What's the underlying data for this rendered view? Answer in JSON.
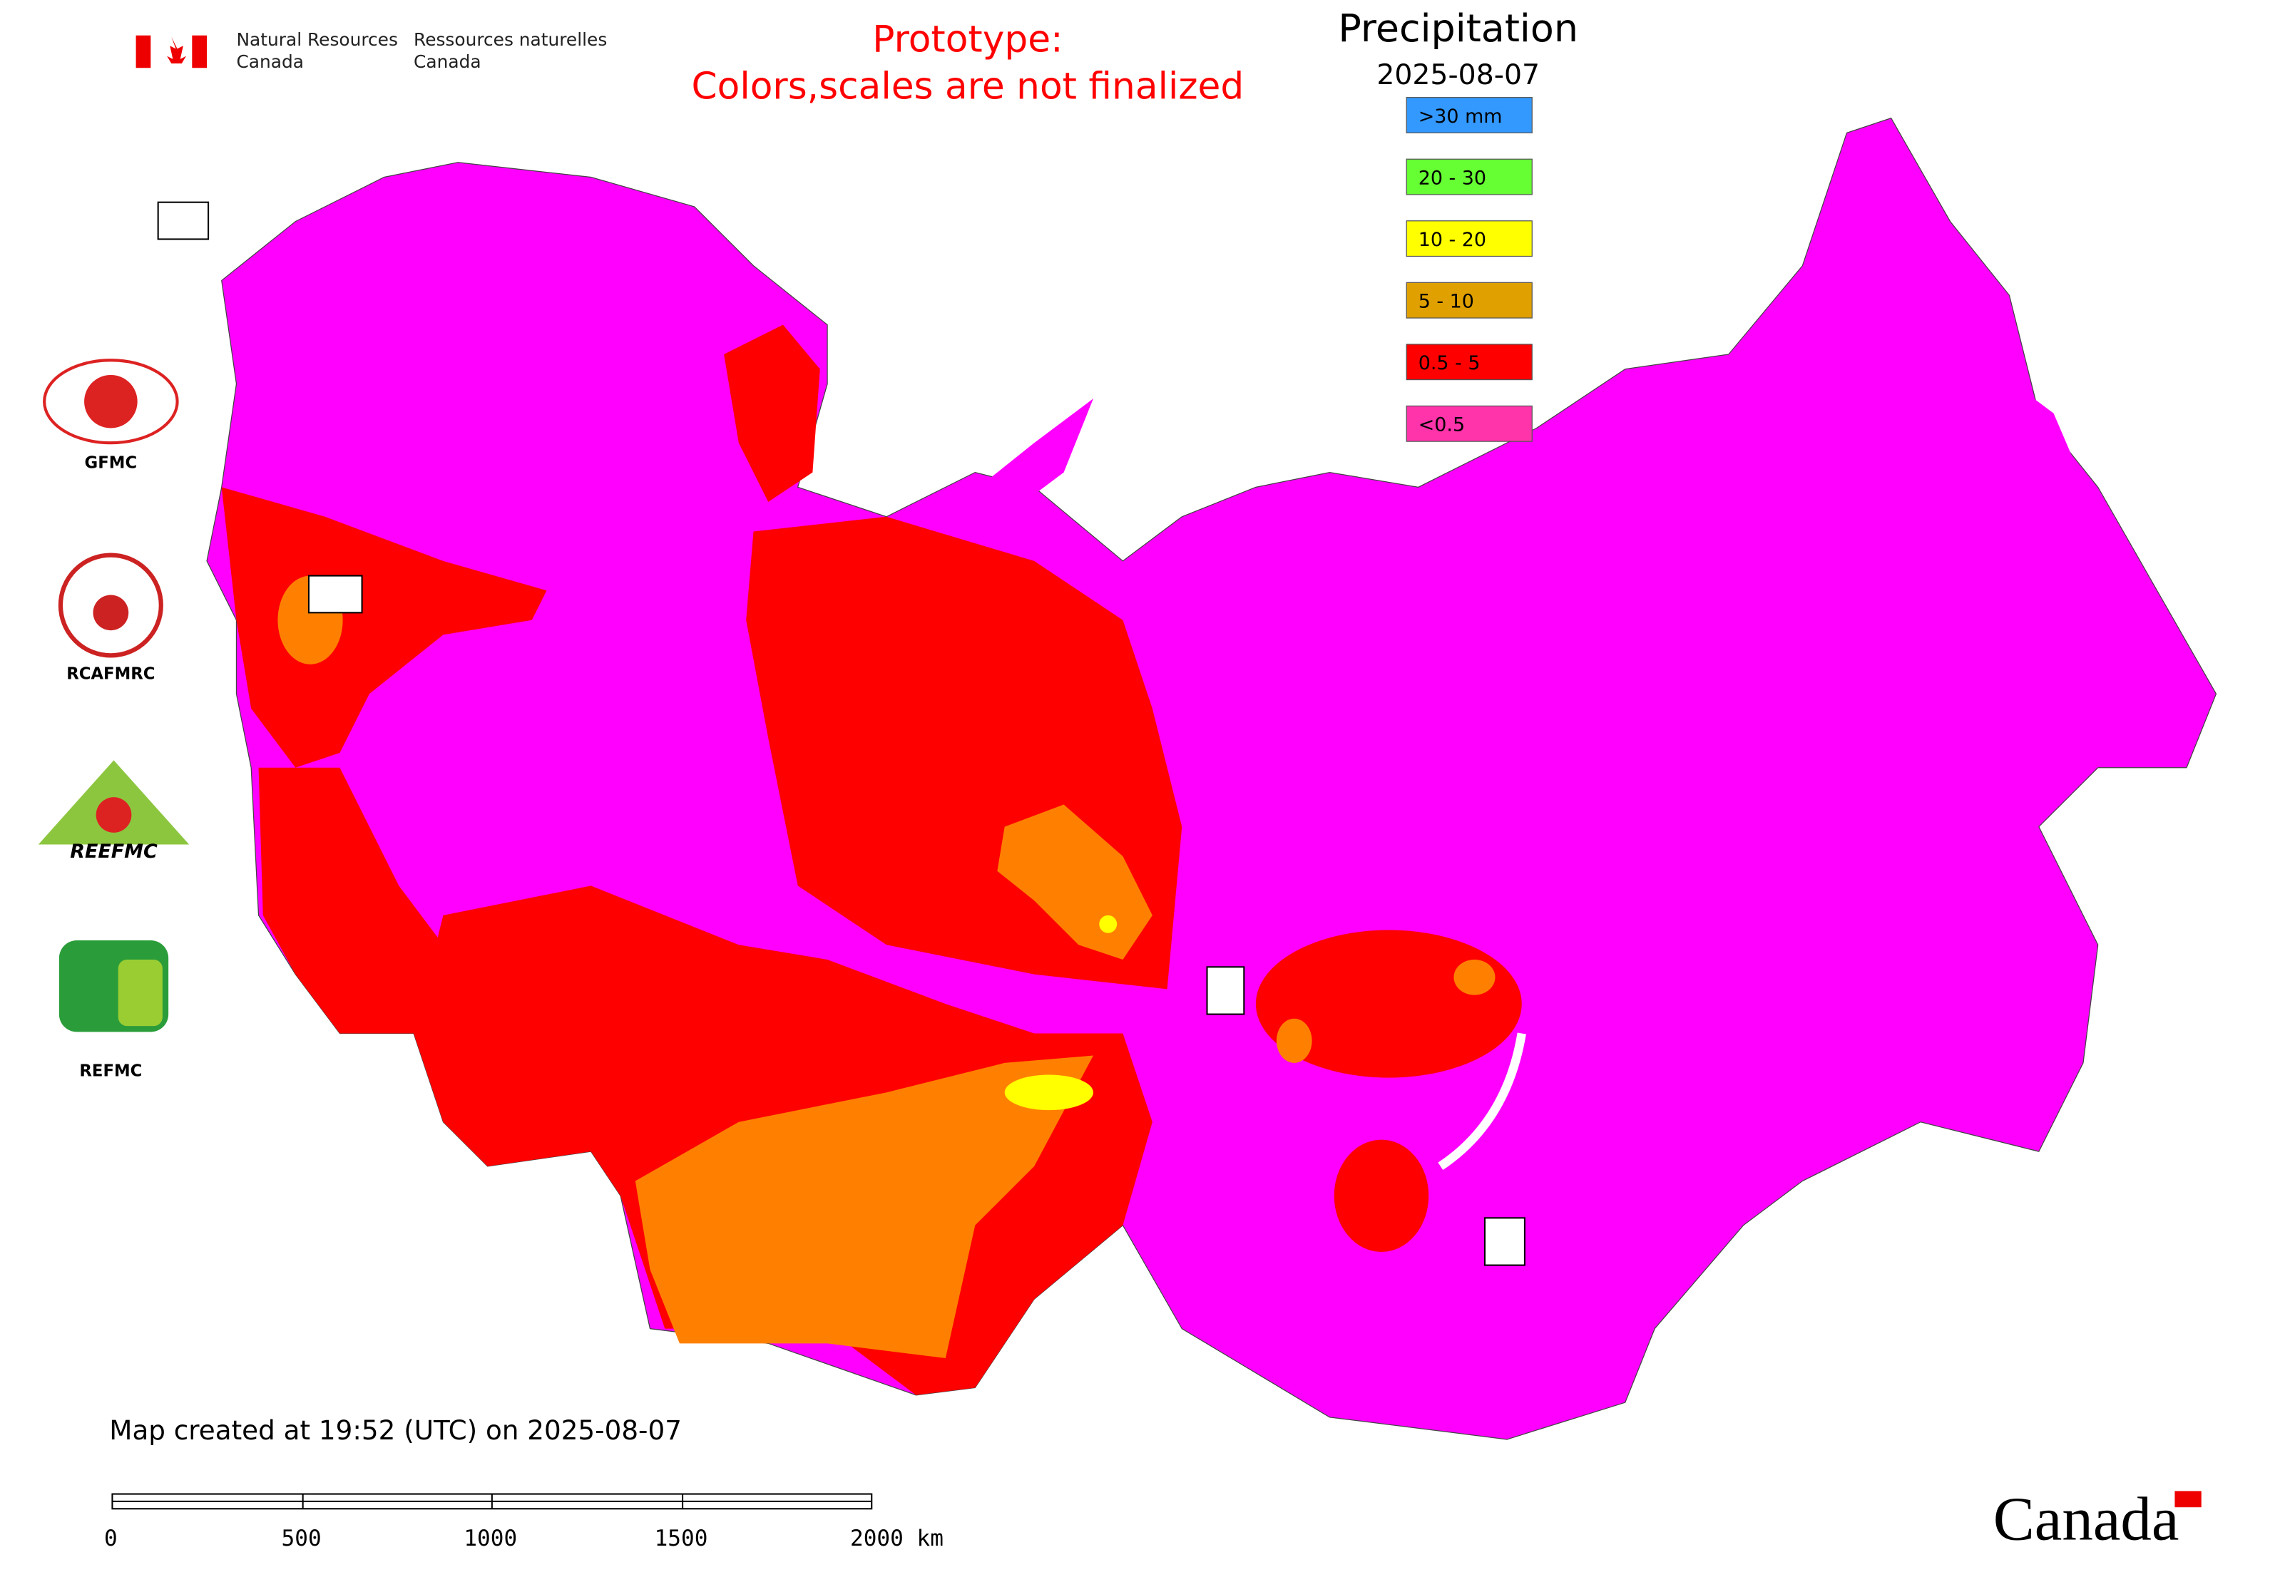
{
  "header": {
    "agency_en": [
      "Natural Resources",
      "Canada"
    ],
    "agency_fr": [
      "Ressources naturelles",
      "Canada"
    ],
    "notice": [
      "Prototype:",
      "Colors,scales are not finalized"
    ],
    "title": "Precipitation",
    "date": "2025-08-07"
  },
  "legend": {
    "items": [
      {
        "label": ">30 mm",
        "color": "#3399ff"
      },
      {
        "label": "20 - 30",
        "color": "#66ff33"
      },
      {
        "label": "10 - 20",
        "color": "#ffff00"
      },
      {
        "label": "5 - 10",
        "color": "#e0a000"
      },
      {
        "label": "0.5 - 5",
        "color": "#ff0000"
      },
      {
        "label": "<0.5",
        "color": "#ff33aa"
      }
    ]
  },
  "logos": {
    "gfmc": "GFMC",
    "rcafmrc": "RCAFMRC",
    "reefmc": "REEFMC",
    "refmc": "REFMC"
  },
  "footer": {
    "created": "Map created at 19:52 (UTC) on 2025-08-07",
    "scale_bar": [
      "0",
      "500",
      "1000",
      "1500",
      "2000 km"
    ],
    "wordmark": "Canada"
  }
}
